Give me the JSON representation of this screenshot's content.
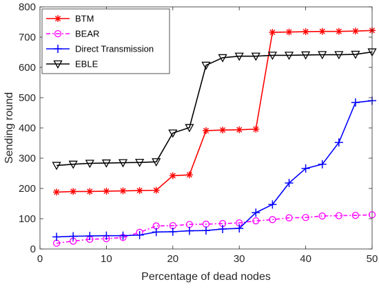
{
  "chart_data": {
    "type": "line",
    "xlabel": "Percentage of dead nodes",
    "ylabel": "Sending round",
    "xlim": [
      0,
      50
    ],
    "ylim": [
      0,
      800
    ],
    "xticks": [
      0,
      10,
      20,
      30,
      40,
      50
    ],
    "yticks": [
      0,
      100,
      200,
      300,
      400,
      500,
      600,
      700,
      800
    ],
    "grid": false,
    "legend_position": "top-left",
    "x": [
      2.5,
      5,
      7.5,
      10,
      12.5,
      15,
      17.5,
      20,
      22.5,
      25,
      27.5,
      30,
      32.5,
      35,
      37.5,
      40,
      42.5,
      45,
      47.5,
      50
    ],
    "series": [
      {
        "name": "BTM",
        "color": "#ff0000",
        "line_style": "solid",
        "marker": "asterisk",
        "values": [
          188,
          190,
          190,
          191,
          192,
          193,
          194,
          242,
          245,
          391,
          393,
          394,
          396,
          716,
          717,
          718,
          719,
          719,
          720,
          722
        ]
      },
      {
        "name": "BEAR",
        "color": "#ff00ff",
        "line_style": "dashdot",
        "marker": "circle",
        "values": [
          19,
          26,
          32,
          34,
          38,
          55,
          76,
          77,
          81,
          82,
          84,
          86,
          93,
          97,
          103,
          104,
          109,
          110,
          111,
          113
        ]
      },
      {
        "name": "Direct Transmission",
        "color": "#0000ff",
        "line_style": "solid",
        "marker": "plus",
        "values": [
          40,
          42,
          43,
          44,
          44,
          46,
          56,
          57,
          60,
          61,
          66,
          68,
          120,
          147,
          218,
          266,
          280,
          352,
          484,
          490
        ]
      },
      {
        "name": "EBLE",
        "color": "#000000",
        "line_style": "solid",
        "marker": "triangle-down",
        "values": [
          276,
          280,
          283,
          284,
          285,
          286,
          288,
          383,
          401,
          607,
          632,
          637,
          637,
          640,
          640,
          641,
          642,
          642,
          643,
          651
        ]
      }
    ]
  }
}
